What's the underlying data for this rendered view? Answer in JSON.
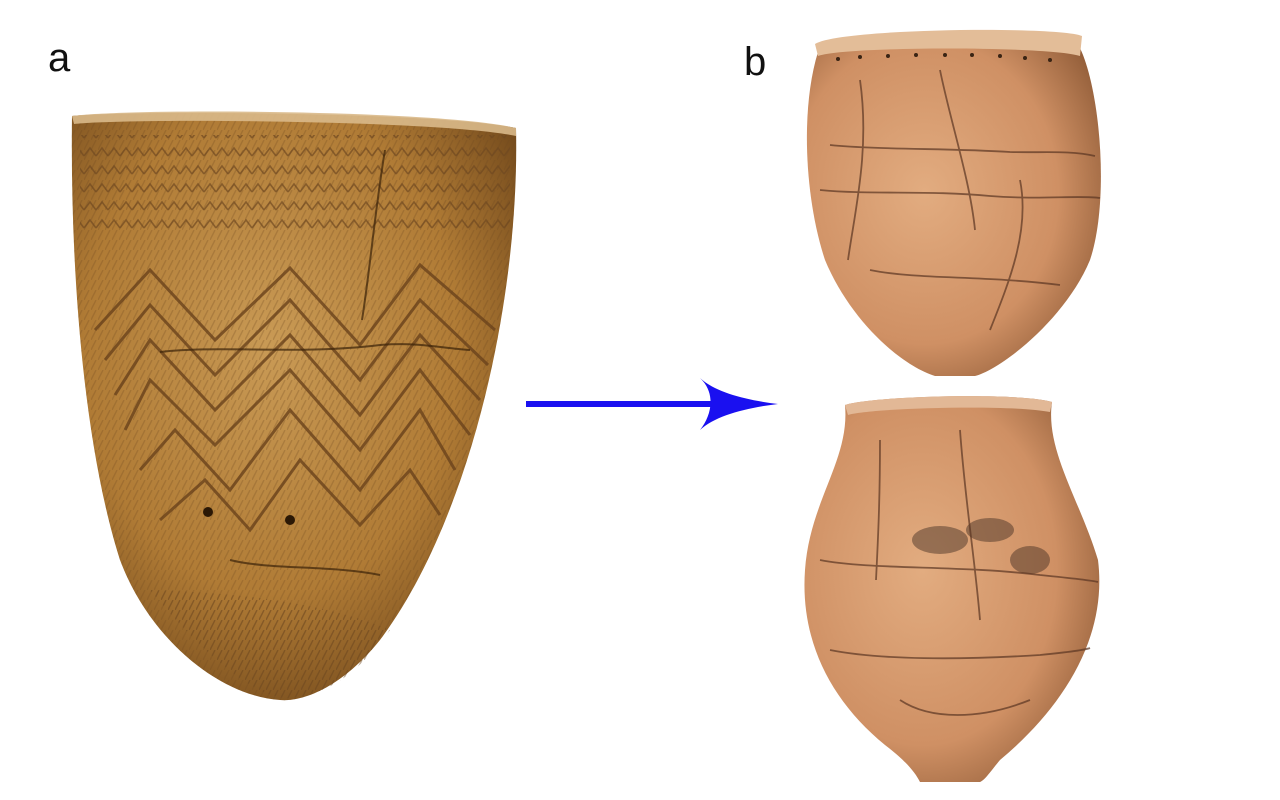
{
  "figure": {
    "panel_a_label": "a",
    "panel_b_label": "b",
    "arrow_color": "#1a10f0",
    "colors": {
      "comb_pottery_body": "#b88640",
      "plain_pottery_body": "#d69a6e"
    }
  }
}
